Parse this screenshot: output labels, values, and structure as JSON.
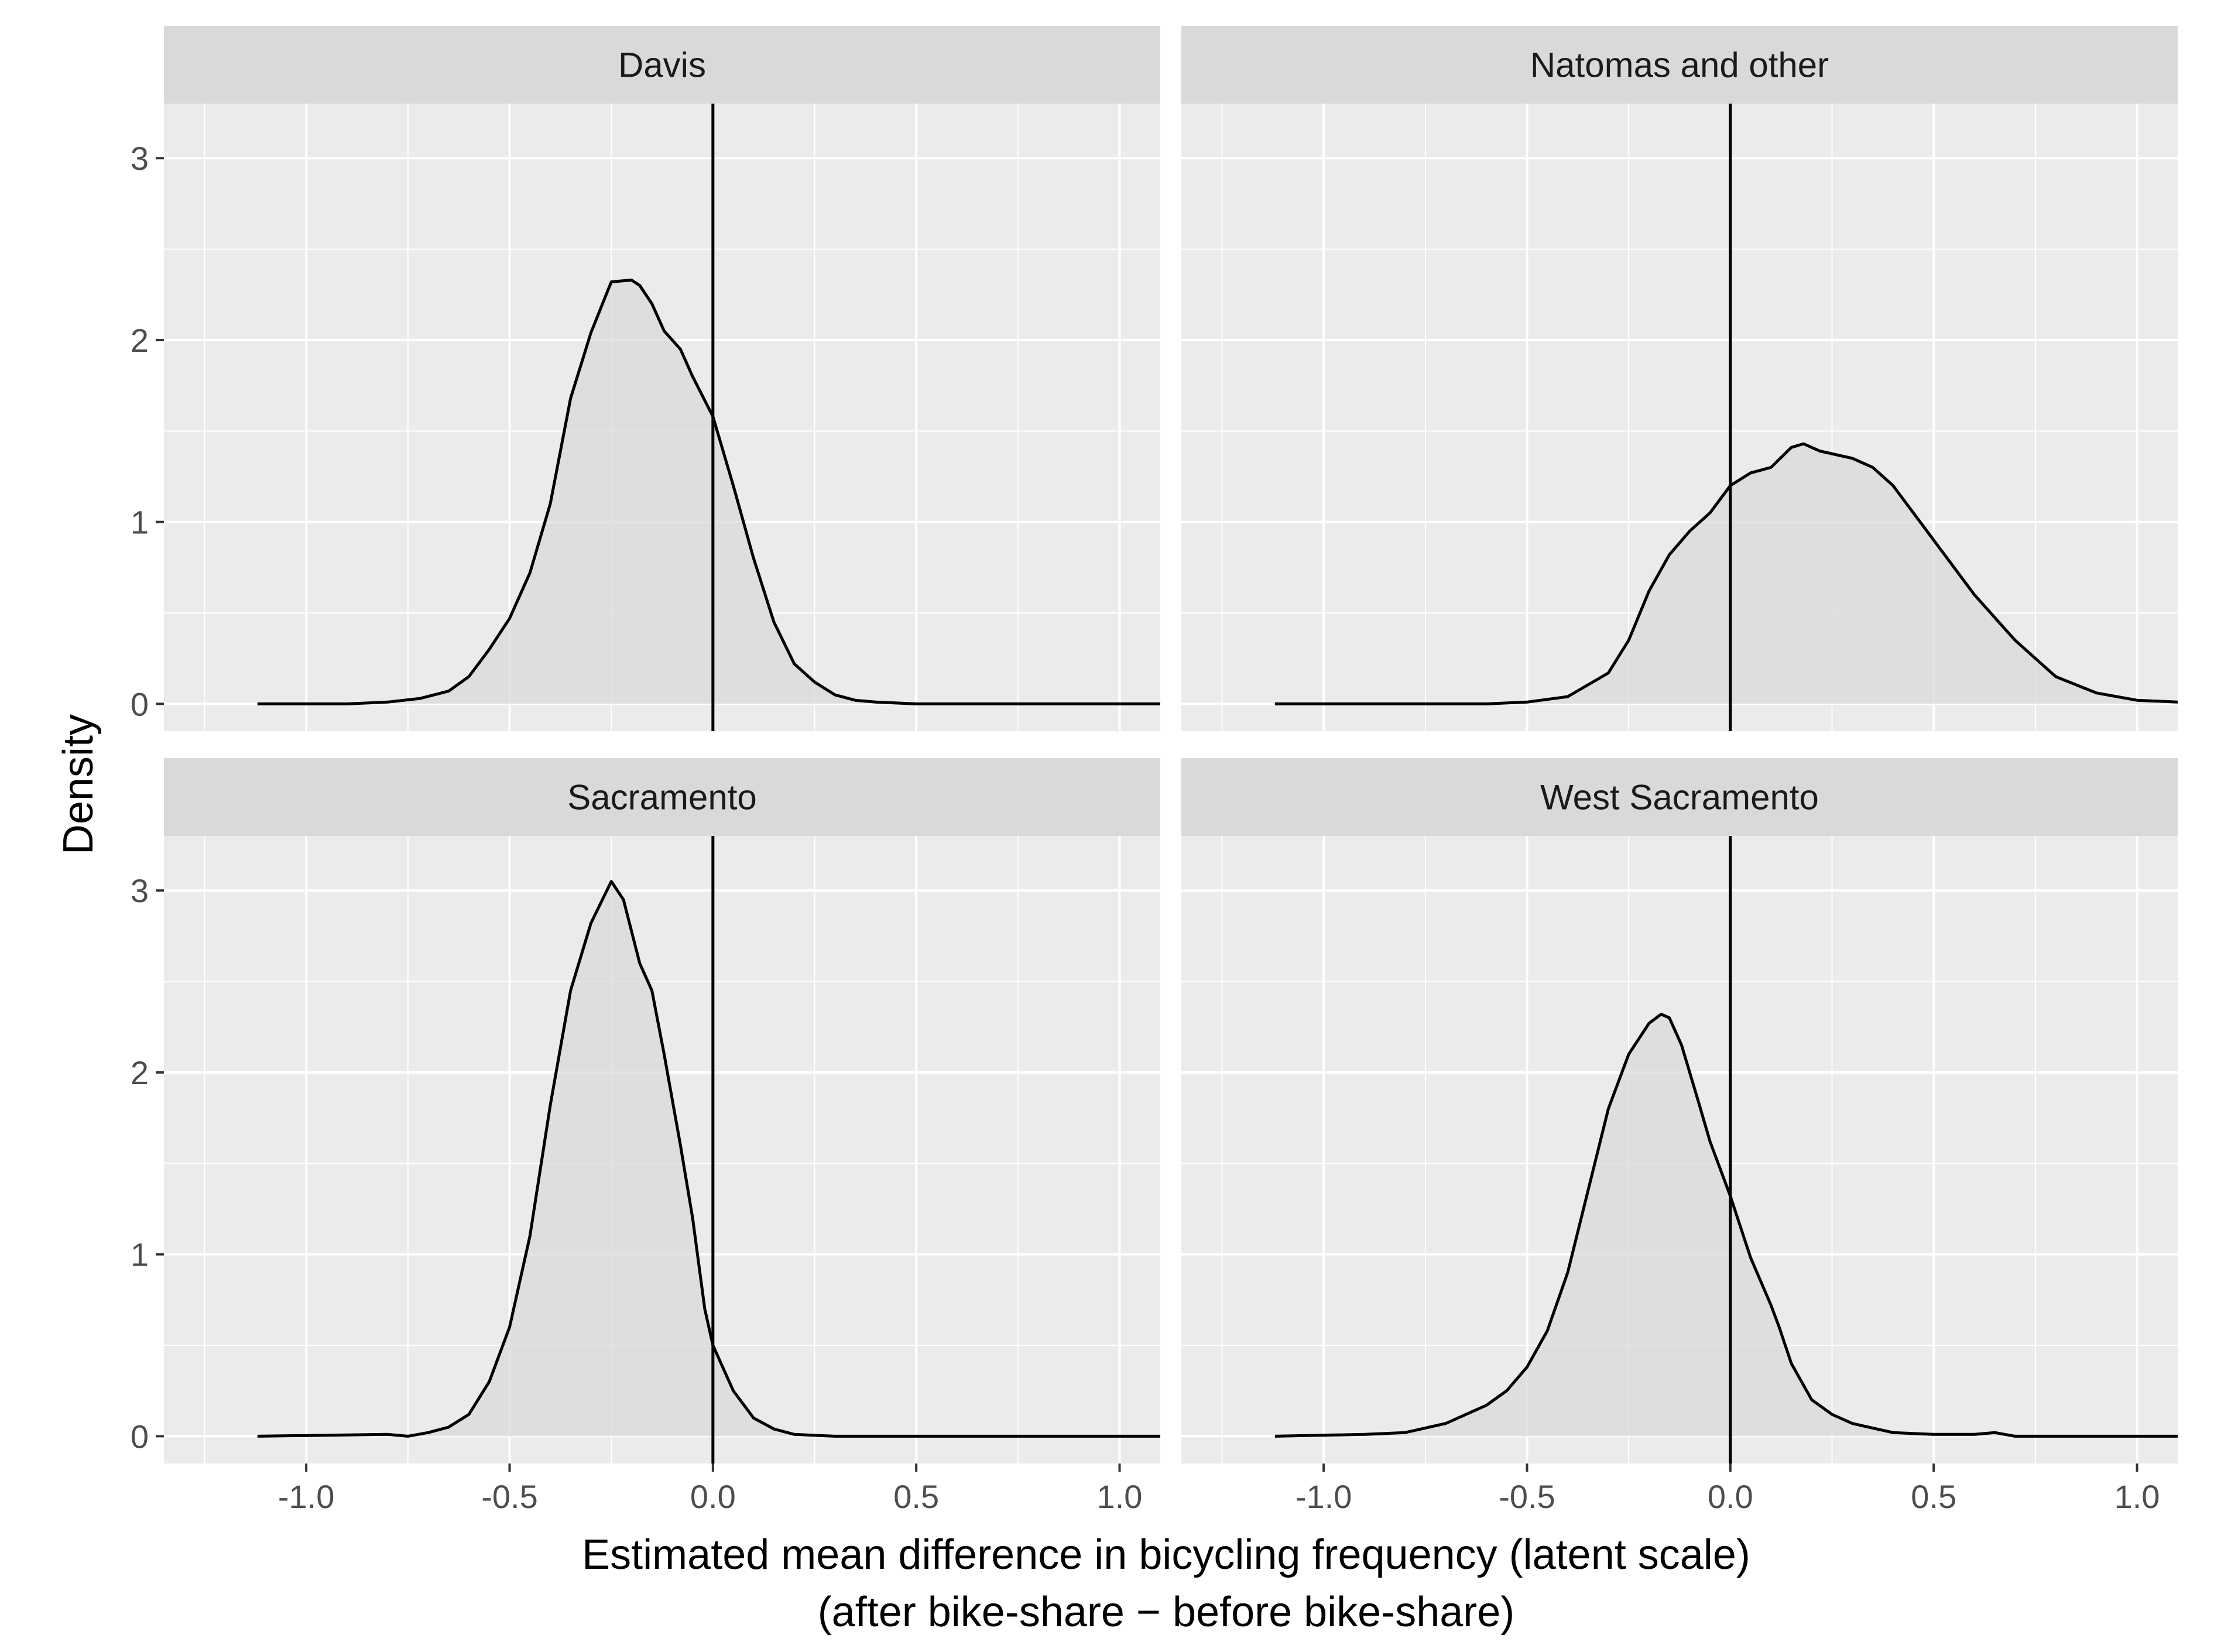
{
  "chart_data": {
    "type": "line",
    "facet_layout": "2x2",
    "xlabel_line1": "Estimated mean difference in bicycling frequency (latent scale)",
    "xlabel_line2": "(after bike-share − before bike-share)",
    "ylabel": "Density",
    "xlim": [
      -1.35,
      1.1
    ],
    "ylim": [
      -0.15,
      3.3
    ],
    "x_ticks": [
      -1.0,
      -0.5,
      0.0,
      0.5,
      1.0
    ],
    "x_tick_labels": [
      "-1.0",
      "-0.5",
      "0.0",
      "0.5",
      "1.0"
    ],
    "y_ticks": [
      0,
      1,
      2,
      3
    ],
    "y_tick_labels": [
      "0",
      "1",
      "2",
      "3"
    ],
    "reference_line_x": 0,
    "grid": true,
    "colors": {
      "panel_bg": "#ebebeb",
      "strip_bg": "#d9d9d9",
      "grid": "#ffffff",
      "fill": "#d9d9d9",
      "line": "#000000"
    },
    "panels": [
      {
        "title": "Davis",
        "x": [
          -1.12,
          -0.9,
          -0.8,
          -0.72,
          -0.65,
          -0.6,
          -0.55,
          -0.5,
          -0.45,
          -0.4,
          -0.35,
          -0.3,
          -0.25,
          -0.2,
          -0.18,
          -0.15,
          -0.12,
          -0.08,
          -0.05,
          0.0,
          0.05,
          0.1,
          0.15,
          0.2,
          0.25,
          0.3,
          0.35,
          0.4,
          0.5,
          0.7,
          1.1
        ],
        "y": [
          0,
          0.0,
          0.01,
          0.03,
          0.07,
          0.15,
          0.3,
          0.47,
          0.72,
          1.1,
          1.68,
          2.04,
          2.32,
          2.33,
          2.3,
          2.2,
          2.05,
          1.95,
          1.8,
          1.58,
          1.2,
          0.8,
          0.45,
          0.22,
          0.12,
          0.05,
          0.02,
          0.01,
          0.0,
          0.0,
          0.0
        ]
      },
      {
        "title": "Natomas and other",
        "x": [
          -1.12,
          -0.8,
          -0.6,
          -0.5,
          -0.4,
          -0.3,
          -0.25,
          -0.2,
          -0.15,
          -0.1,
          -0.05,
          0.0,
          0.05,
          0.1,
          0.15,
          0.18,
          0.22,
          0.3,
          0.35,
          0.4,
          0.5,
          0.6,
          0.7,
          0.8,
          0.9,
          1.0,
          1.1
        ],
        "y": [
          0,
          0.0,
          0.0,
          0.01,
          0.04,
          0.17,
          0.35,
          0.62,
          0.82,
          0.95,
          1.05,
          1.2,
          1.27,
          1.3,
          1.41,
          1.43,
          1.39,
          1.35,
          1.3,
          1.2,
          0.9,
          0.6,
          0.35,
          0.15,
          0.06,
          0.02,
          0.01
        ]
      },
      {
        "title": "Sacramento",
        "x": [
          -1.12,
          -0.8,
          -0.75,
          -0.7,
          -0.65,
          -0.6,
          -0.55,
          -0.5,
          -0.45,
          -0.4,
          -0.35,
          -0.3,
          -0.25,
          -0.22,
          -0.18,
          -0.15,
          -0.12,
          -0.08,
          -0.05,
          -0.02,
          0.0,
          0.05,
          0.1,
          0.15,
          0.2,
          0.3,
          1.1
        ],
        "y": [
          0,
          0.01,
          0.0,
          0.02,
          0.05,
          0.12,
          0.3,
          0.6,
          1.1,
          1.82,
          2.45,
          2.82,
          3.05,
          2.95,
          2.6,
          2.45,
          2.1,
          1.6,
          1.2,
          0.7,
          0.5,
          0.25,
          0.1,
          0.04,
          0.01,
          0.0,
          0.0
        ]
      },
      {
        "title": "West Sacramento",
        "x": [
          -1.12,
          -0.9,
          -0.8,
          -0.7,
          -0.6,
          -0.55,
          -0.5,
          -0.45,
          -0.4,
          -0.35,
          -0.3,
          -0.25,
          -0.2,
          -0.17,
          -0.15,
          -0.12,
          -0.08,
          -0.05,
          0.0,
          0.05,
          0.1,
          0.12,
          0.15,
          0.2,
          0.25,
          0.3,
          0.4,
          0.5,
          0.6,
          0.65,
          0.7,
          1.1
        ],
        "y": [
          0,
          0.01,
          0.02,
          0.07,
          0.17,
          0.25,
          0.38,
          0.58,
          0.9,
          1.35,
          1.8,
          2.1,
          2.27,
          2.32,
          2.3,
          2.15,
          1.85,
          1.62,
          1.32,
          0.98,
          0.72,
          0.6,
          0.4,
          0.2,
          0.12,
          0.07,
          0.02,
          0.01,
          0.01,
          0.02,
          0.0,
          0.0
        ]
      }
    ]
  }
}
